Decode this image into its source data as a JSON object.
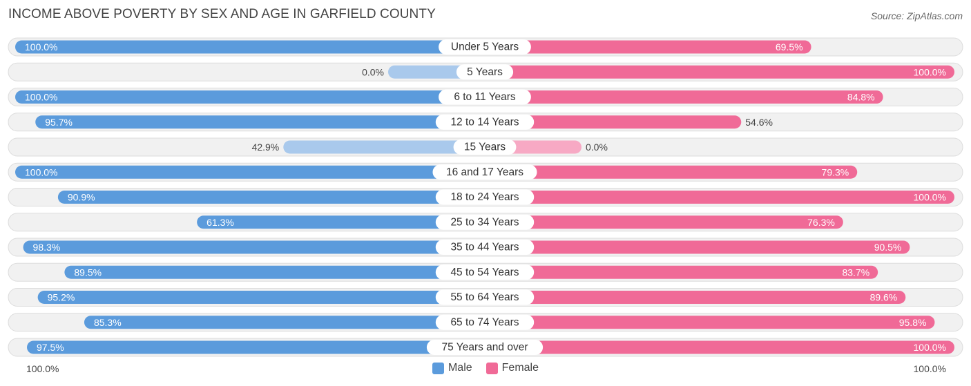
{
  "chart_data": {
    "type": "bar",
    "orientation": "horizontal-diverging",
    "title": "INCOME ABOVE POVERTY BY SEX AND AGE IN GARFIELD COUNTY",
    "source": "Source: ZipAtlas.com",
    "categories": [
      "Under 5 Years",
      "5 Years",
      "6 to 11 Years",
      "12 to 14 Years",
      "15 Years",
      "16 and 17 Years",
      "18 to 24 Years",
      "25 to 34 Years",
      "35 to 44 Years",
      "45 to 54 Years",
      "55 to 64 Years",
      "65 to 74 Years",
      "75 Years and over"
    ],
    "series": [
      {
        "name": "Male",
        "color": "#5b9bdc",
        "color_light": "#a9c9ec",
        "values": [
          100.0,
          0.0,
          100.0,
          95.7,
          42.9,
          100.0,
          90.9,
          61.3,
          98.3,
          89.5,
          95.2,
          85.3,
          97.5
        ],
        "labels": [
          "100.0%",
          "0.0%",
          "100.0%",
          "95.7%",
          "42.9%",
          "100.0%",
          "90.9%",
          "61.3%",
          "98.3%",
          "89.5%",
          "95.2%",
          "85.3%",
          "97.5%"
        ]
      },
      {
        "name": "Female",
        "color": "#f06a97",
        "color_light": "#f7a9c4",
        "values": [
          69.5,
          100.0,
          84.8,
          54.6,
          0.0,
          79.3,
          100.0,
          76.3,
          90.5,
          83.7,
          89.6,
          95.8,
          100.0
        ],
        "labels": [
          "69.5%",
          "100.0%",
          "84.8%",
          "54.6%",
          "0.0%",
          "79.3%",
          "100.0%",
          "76.3%",
          "90.5%",
          "83.7%",
          "89.6%",
          "95.8%",
          "100.0%"
        ]
      }
    ],
    "xlim": [
      0,
      100
    ],
    "axis_left_label": "100.0%",
    "axis_right_label": "100.0%",
    "legend_position": "bottom-center"
  }
}
